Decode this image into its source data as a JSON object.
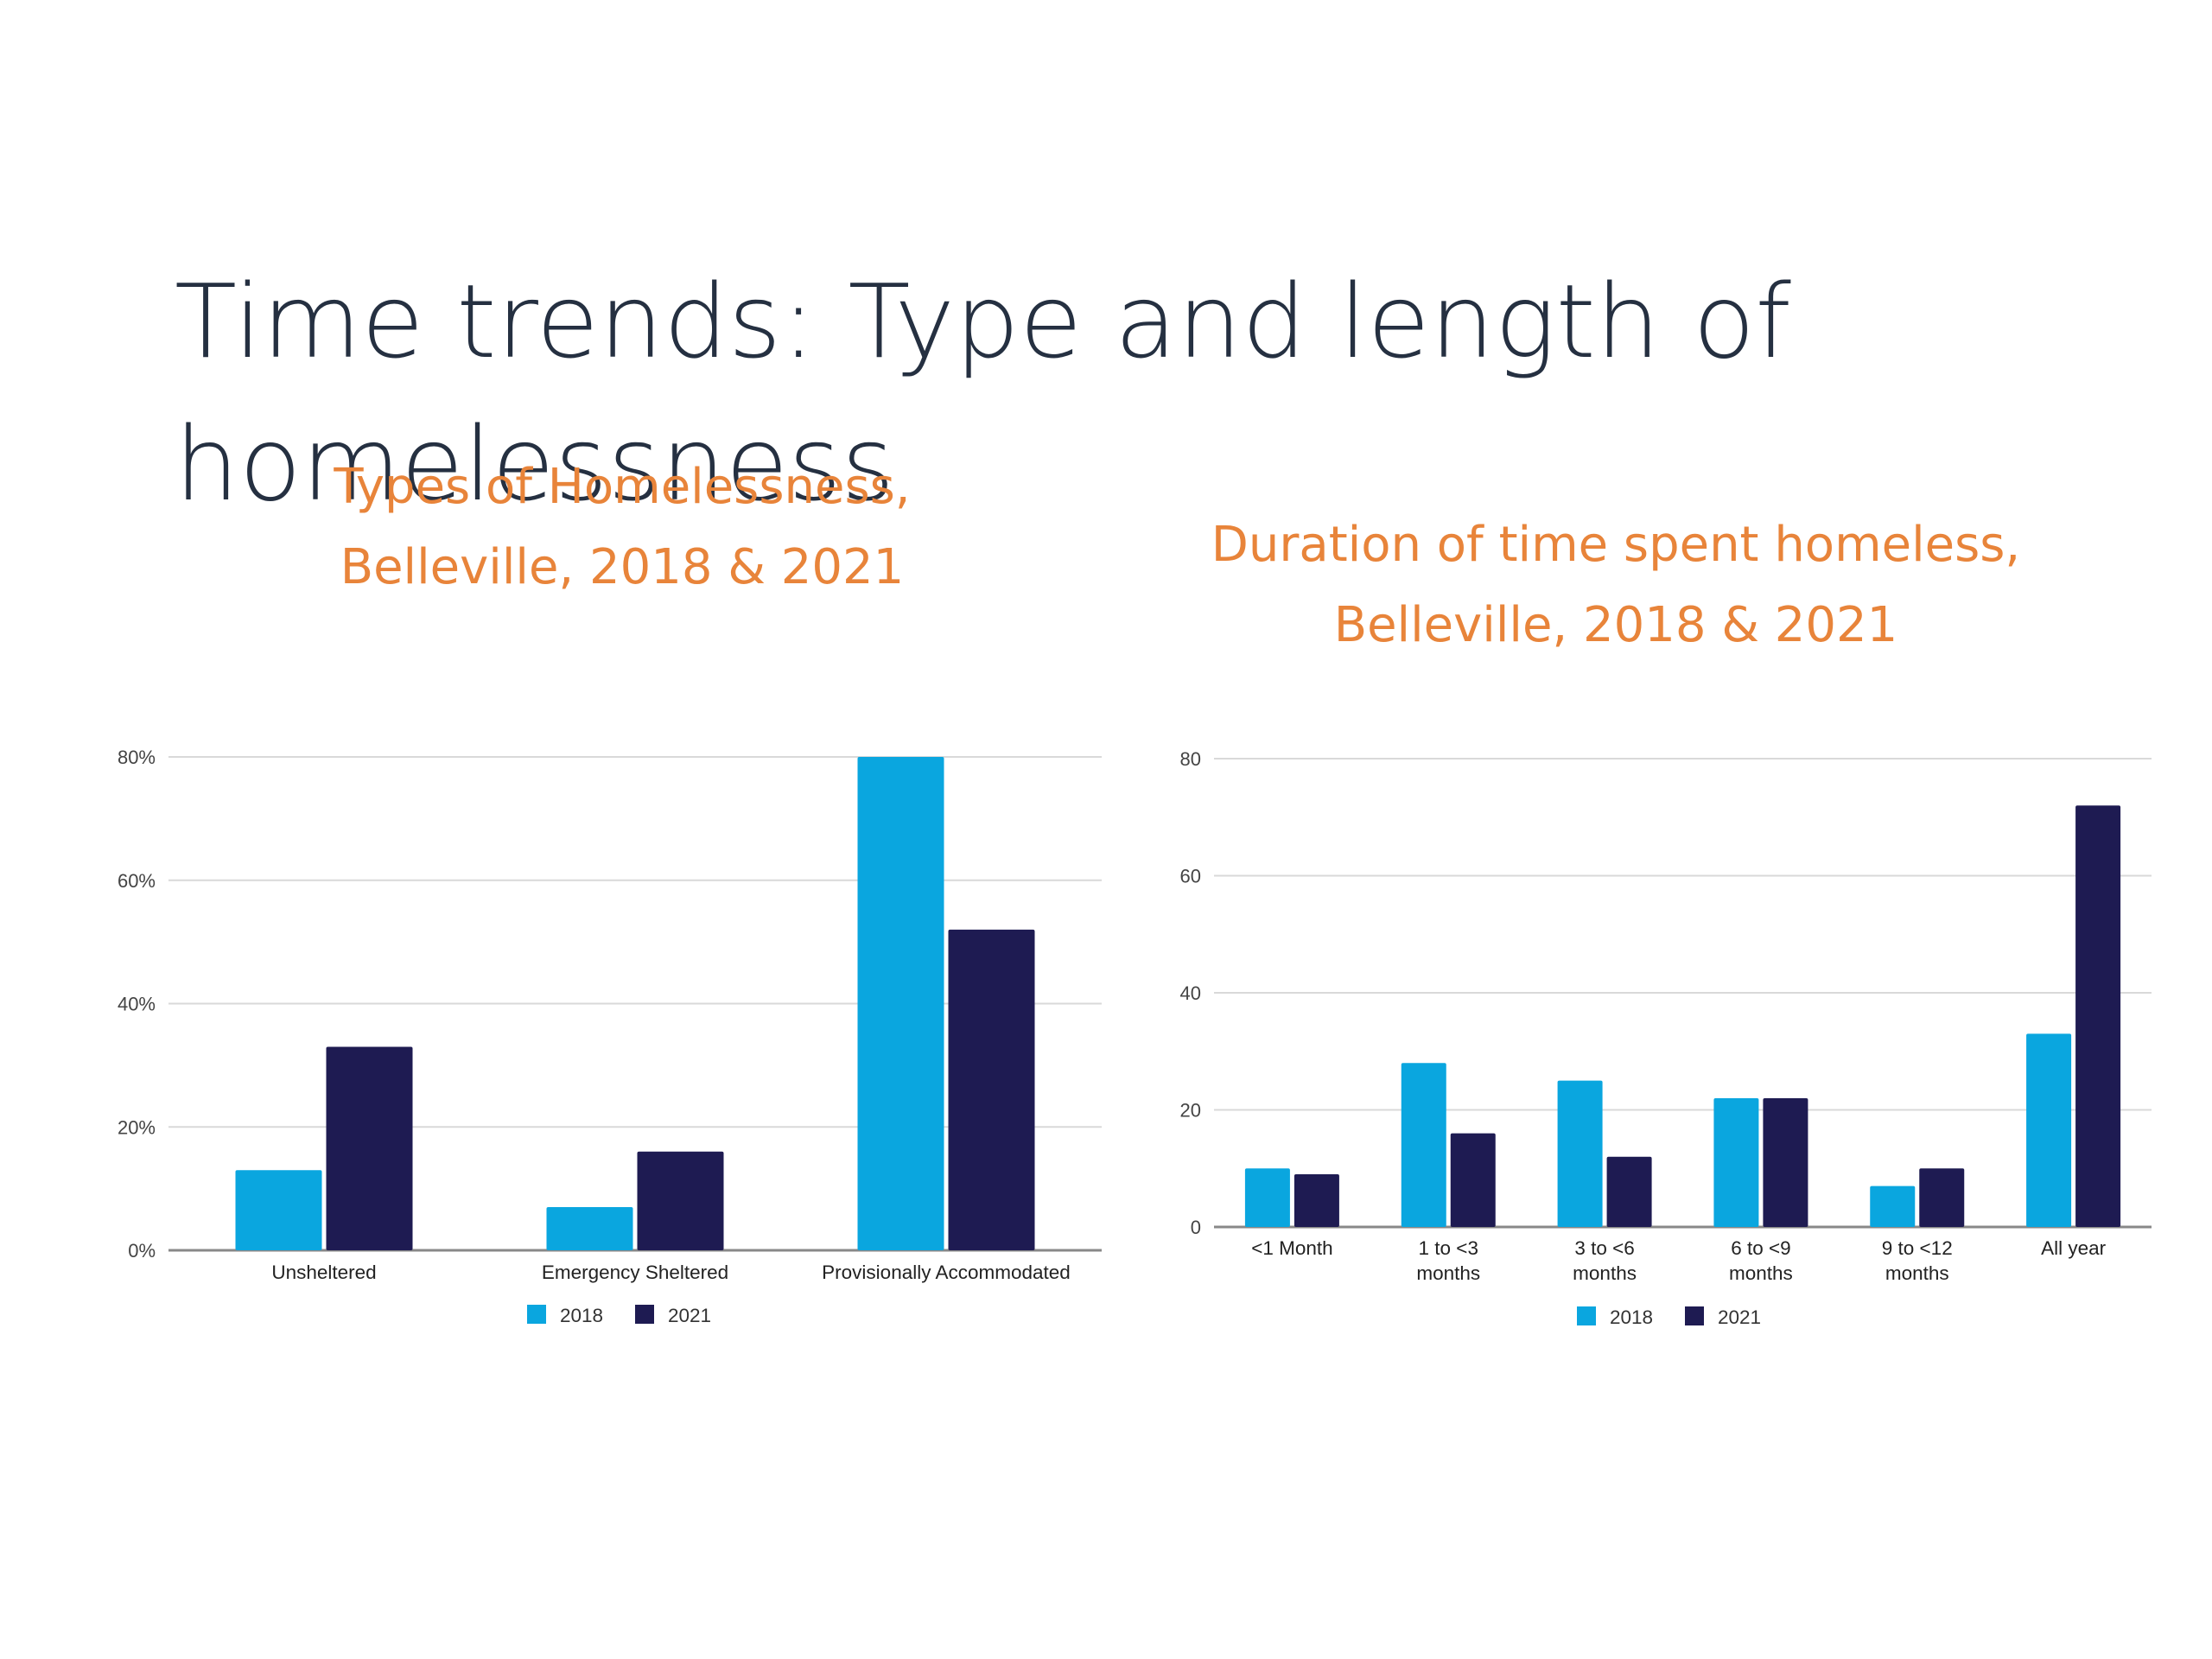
{
  "slide": {
    "title": "Time trends: Type and length of\nhomelessness"
  },
  "colors": {
    "series_2018": "#0aa6df",
    "series_2021": "#1e1b52",
    "title_orange": "#e8843a",
    "grid": "#d9d9d9",
    "axis": "#888888"
  },
  "chart_data": [
    {
      "type": "bar",
      "title": "Types of Homelessness,\nBelleville, 2018 & 2021",
      "categories": [
        "Unsheltered",
        "Emergency Sheltered",
        "Provisionally Accommodated"
      ],
      "series": [
        {
          "name": "2018",
          "values": [
            13,
            7,
            80
          ]
        },
        {
          "name": "2021",
          "values": [
            33,
            16,
            52
          ]
        }
      ],
      "unit": "%",
      "ylim": [
        0,
        80
      ],
      "yticks": [
        0,
        20,
        40,
        60,
        80
      ],
      "ytick_labels": [
        "0%",
        "20%",
        "40%",
        "60%",
        "80%"
      ],
      "xlabel": "",
      "ylabel": "",
      "grid": true,
      "legend": "bottom"
    },
    {
      "type": "bar",
      "title": "Duration of time spent homeless,\nBelleville, 2018 & 2021",
      "categories": [
        "<1 Month",
        "1 to <3\nmonths",
        "3 to <6\nmonths",
        "6 to <9\nmonths",
        "9 to <12\nmonths",
        "All year"
      ],
      "series": [
        {
          "name": "2018",
          "values": [
            10,
            28,
            25,
            22,
            7,
            33
          ]
        },
        {
          "name": "2021",
          "values": [
            9,
            16,
            12,
            22,
            10,
            72
          ]
        }
      ],
      "ylim": [
        0,
        80
      ],
      "yticks": [
        0,
        20,
        40,
        60,
        80
      ],
      "ytick_labels": [
        "0",
        "20",
        "40",
        "60",
        "80"
      ],
      "xlabel": "",
      "ylabel": "",
      "grid": true,
      "legend": "bottom"
    }
  ]
}
